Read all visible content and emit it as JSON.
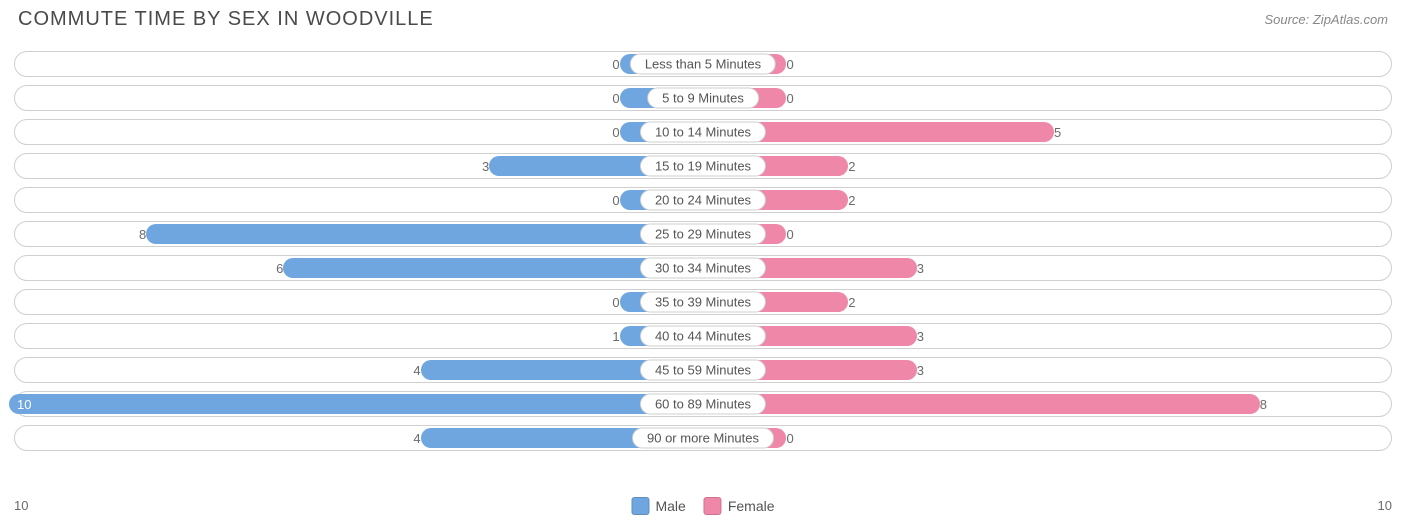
{
  "title": "COMMUTE TIME BY SEX IN WOODVILLE",
  "source": "Source: ZipAtlas.com",
  "chart": {
    "type": "diverging-bar",
    "background_color": "#ffffff",
    "track_border_color": "#cfcfcf",
    "label_color": "#6b6b6b",
    "text_color": "#555555",
    "min_bar_pct": 11,
    "series": [
      {
        "key": "male",
        "label": "Male",
        "color": "#6fa6e0",
        "side": "left"
      },
      {
        "key": "female",
        "label": "Female",
        "color": "#ef87a9",
        "side": "right"
      }
    ],
    "axis": {
      "left_max": 10,
      "right_max": 10,
      "left_label": "10",
      "right_label": "10"
    },
    "categories": [
      {
        "label": "Less than 5 Minutes",
        "male": 0,
        "female": 0
      },
      {
        "label": "5 to 9 Minutes",
        "male": 0,
        "female": 0
      },
      {
        "label": "10 to 14 Minutes",
        "male": 0,
        "female": 5
      },
      {
        "label": "15 to 19 Minutes",
        "male": 3,
        "female": 2
      },
      {
        "label": "20 to 24 Minutes",
        "male": 0,
        "female": 2
      },
      {
        "label": "25 to 29 Minutes",
        "male": 8,
        "female": 0
      },
      {
        "label": "30 to 34 Minutes",
        "male": 6,
        "female": 3
      },
      {
        "label": "35 to 39 Minutes",
        "male": 0,
        "female": 2
      },
      {
        "label": "40 to 44 Minutes",
        "male": 1,
        "female": 3
      },
      {
        "label": "45 to 59 Minutes",
        "male": 4,
        "female": 3
      },
      {
        "label": "60 to 89 Minutes",
        "male": 10,
        "female": 8
      },
      {
        "label": "90 or more Minutes",
        "male": 4,
        "female": 0
      }
    ]
  }
}
